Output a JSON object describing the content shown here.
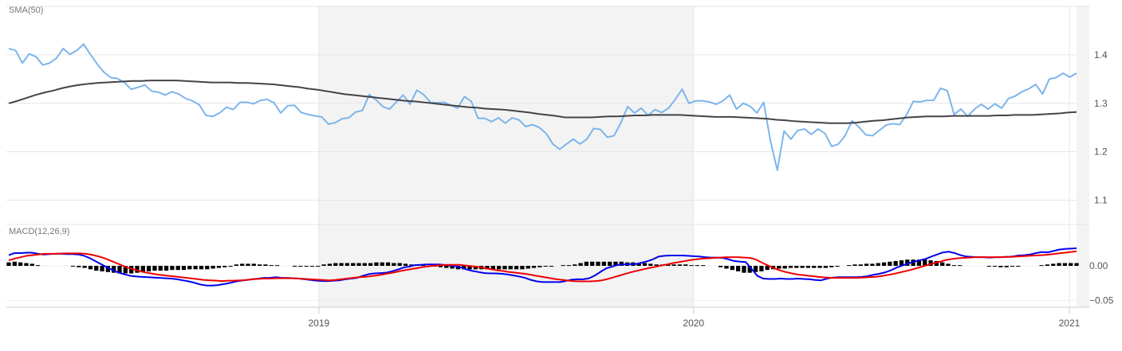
{
  "chart_data": [
    {
      "type": "line",
      "title": "SMA(50)",
      "ylim": [
        1.05,
        1.5
      ],
      "yticks": [
        1.1,
        1.2,
        1.3,
        1.4
      ],
      "ytick_labels": [
        "1.1",
        "1.2",
        "1.3",
        "1.4"
      ],
      "grid": true,
      "series": [
        {
          "color": "#7cb5ec",
          "values": [
            1.413,
            1.409,
            1.383,
            1.402,
            1.396,
            1.379,
            1.383,
            1.393,
            1.413,
            1.401,
            1.409,
            1.422,
            1.401,
            1.381,
            1.364,
            1.353,
            1.351,
            1.343,
            1.329,
            1.333,
            1.338,
            1.325,
            1.323,
            1.317,
            1.324,
            1.319,
            1.31,
            1.305,
            1.297,
            1.275,
            1.273,
            1.28,
            1.292,
            1.287,
            1.302,
            1.302,
            1.299,
            1.306,
            1.308,
            1.301,
            1.28,
            1.295,
            1.296,
            1.281,
            1.277,
            1.274,
            1.272,
            1.257,
            1.26,
            1.268,
            1.27,
            1.282,
            1.285,
            1.318,
            1.307,
            1.293,
            1.288,
            1.303,
            1.317,
            1.298,
            1.327,
            1.318,
            1.302,
            1.301,
            1.302,
            1.296,
            1.29,
            1.314,
            1.304,
            1.269,
            1.269,
            1.262,
            1.27,
            1.259,
            1.27,
            1.266,
            1.252,
            1.256,
            1.25,
            1.238,
            1.216,
            1.205,
            1.216,
            1.226,
            1.216,
            1.226,
            1.248,
            1.246,
            1.23,
            1.233,
            1.26,
            1.293,
            1.28,
            1.29,
            1.275,
            1.287,
            1.281,
            1.29,
            1.308,
            1.329,
            1.3,
            1.305,
            1.305,
            1.303,
            1.298,
            1.305,
            1.317,
            1.288,
            1.3,
            1.294,
            1.28,
            1.302,
            1.222,
            1.162,
            1.243,
            1.226,
            1.244,
            1.247,
            1.236,
            1.247,
            1.238,
            1.211,
            1.216,
            1.234,
            1.264,
            1.251,
            1.235,
            1.233,
            1.244,
            1.255,
            1.258,
            1.256,
            1.276,
            1.304,
            1.303,
            1.306,
            1.306,
            1.331,
            1.326,
            1.277,
            1.288,
            1.273,
            1.288,
            1.298,
            1.288,
            1.299,
            1.29,
            1.31,
            1.315,
            1.324,
            1.33,
            1.339,
            1.319,
            1.35,
            1.353,
            1.362,
            1.354,
            1.362
          ]
        },
        {
          "color": "#434348",
          "values": [
            1.3,
            1.305,
            1.311,
            1.317,
            1.322,
            1.326,
            1.331,
            1.335,
            1.338,
            1.34,
            1.342,
            1.343,
            1.344,
            1.345,
            1.346,
            1.346,
            1.347,
            1.347,
            1.347,
            1.347,
            1.346,
            1.345,
            1.344,
            1.343,
            1.343,
            1.343,
            1.342,
            1.342,
            1.341,
            1.34,
            1.339,
            1.337,
            1.335,
            1.333,
            1.33,
            1.328,
            1.325,
            1.322,
            1.319,
            1.317,
            1.315,
            1.313,
            1.311,
            1.309,
            1.307,
            1.305,
            1.304,
            1.302,
            1.3,
            1.298,
            1.296,
            1.294,
            1.292,
            1.291,
            1.289,
            1.288,
            1.287,
            1.285,
            1.283,
            1.281,
            1.278,
            1.276,
            1.274,
            1.271,
            1.271,
            1.271,
            1.271,
            1.272,
            1.273,
            1.273,
            1.274,
            1.275,
            1.275,
            1.276,
            1.276,
            1.276,
            1.276,
            1.275,
            1.274,
            1.273,
            1.272,
            1.272,
            1.272,
            1.271,
            1.27,
            1.269,
            1.268,
            1.266,
            1.265,
            1.263,
            1.262,
            1.261,
            1.26,
            1.259,
            1.259,
            1.259,
            1.26,
            1.262,
            1.264,
            1.265,
            1.267,
            1.269,
            1.271,
            1.272,
            1.273,
            1.273,
            1.273,
            1.274,
            1.274,
            1.274,
            1.274,
            1.274,
            1.275,
            1.275,
            1.276,
            1.276,
            1.276,
            1.277,
            1.278,
            1.279,
            1.281,
            1.282
          ]
        }
      ]
    },
    {
      "type": "bar",
      "title": "MACD(12,26,9)",
      "ylim": [
        -0.06,
        0.06
      ],
      "yticks": [
        0.0,
        -0.05
      ],
      "ytick_labels": [
        "0.00",
        "−0.05"
      ],
      "grid": true,
      "x_type": "date",
      "x_range": [
        "2018-03-05",
        "2021-01-08"
      ],
      "xticks": [
        "2019-01-01",
        "2020-01-01",
        "2021-01-01"
      ],
      "xtick_labels": [
        "2019",
        "2020",
        "2021"
      ],
      "shaded_band": [
        "2019-01-01",
        "2020-01-01"
      ],
      "series": [
        {
          "type": "line",
          "color": "#0000ee",
          "values": [
            0.0155,
            0.0185,
            0.0185,
            0.019,
            0.019,
            0.0175,
            0.0165,
            0.017,
            0.0175,
            0.0175,
            0.017,
            0.017,
            0.0165,
            0.0145,
            0.011,
            0.0065,
            0.002,
            -0.0025,
            -0.0065,
            -0.01,
            -0.0125,
            -0.0145,
            -0.0155,
            -0.016,
            -0.0165,
            -0.017,
            -0.0175,
            -0.018,
            -0.0185,
            -0.0195,
            -0.021,
            -0.0225,
            -0.0245,
            -0.027,
            -0.0285,
            -0.0285,
            -0.028,
            -0.0265,
            -0.025,
            -0.023,
            -0.0215,
            -0.0205,
            -0.0195,
            -0.0185,
            -0.0175,
            -0.0175,
            -0.0165,
            -0.0175,
            -0.0175,
            -0.018,
            -0.0185,
            -0.0195,
            -0.0205,
            -0.0215,
            -0.022,
            -0.022,
            -0.0215,
            -0.021,
            -0.0195,
            -0.0185,
            -0.0175,
            -0.0145,
            -0.012,
            -0.011,
            -0.0105,
            -0.01,
            -0.008,
            -0.0055,
            -0.0025,
            -0.001,
            0.001,
            0.0015,
            0.002,
            0.002,
            0.002,
            0.0015,
            0.0005,
            -0.0005,
            -0.0025,
            -0.0055,
            -0.0075,
            -0.009,
            -0.0105,
            -0.011,
            -0.011,
            -0.0115,
            -0.0125,
            -0.014,
            -0.0155,
            -0.0175,
            -0.0205,
            -0.0225,
            -0.0235,
            -0.0235,
            -0.0235,
            -0.0235,
            -0.022,
            -0.02,
            -0.0195,
            -0.0195,
            -0.018,
            -0.014,
            -0.0085,
            -0.0035,
            -0.001,
            0.0015,
            0.002,
            0.0025,
            0.0025,
            0.0045,
            0.0065,
            0.0095,
            0.0135,
            0.0145,
            0.015,
            0.015,
            0.015,
            0.0145,
            0.014,
            0.0135,
            0.0125,
            0.012,
            0.012,
            0.0115,
            0.0095,
            0.007,
            0.006,
            0.0055,
            -0.0045,
            -0.0145,
            -0.0185,
            -0.019,
            -0.019,
            -0.0185,
            -0.019,
            -0.019,
            -0.0185,
            -0.019,
            -0.0195,
            -0.0205,
            -0.021,
            -0.0185,
            -0.017,
            -0.0165,
            -0.0165,
            -0.0165,
            -0.0165,
            -0.016,
            -0.015,
            -0.013,
            -0.0115,
            -0.0095,
            -0.0065,
            -0.0025,
            0.0005,
            0.0035,
            0.006,
            0.008,
            0.01,
            0.0135,
            0.0165,
            0.0195,
            0.0205,
            0.0185,
            0.0155,
            0.0135,
            0.013,
            0.0125,
            0.0125,
            0.012,
            0.0125,
            0.0125,
            0.013,
            0.0135,
            0.015,
            0.0155,
            0.0165,
            0.0185,
            0.02,
            0.0195,
            0.0215,
            0.0235,
            0.0245,
            0.025,
            0.0255
          ]
        },
        {
          "type": "line",
          "color": "#ee0000",
          "values": [
            0.008,
            0.0105,
            0.0125,
            0.0145,
            0.0155,
            0.0165,
            0.0175,
            0.0175,
            0.0175,
            0.018,
            0.018,
            0.018,
            0.018,
            0.0175,
            0.016,
            0.014,
            0.0115,
            0.008,
            0.0045,
            0.001,
            -0.0025,
            -0.005,
            -0.0075,
            -0.0095,
            -0.011,
            -0.0125,
            -0.0135,
            -0.0145,
            -0.0155,
            -0.0165,
            -0.0175,
            -0.0185,
            -0.0195,
            -0.0205,
            -0.021,
            -0.0215,
            -0.022,
            -0.0215,
            -0.0215,
            -0.021,
            -0.0205,
            -0.0195,
            -0.019,
            -0.0185,
            -0.0185,
            -0.018,
            -0.018,
            -0.018,
            -0.018,
            -0.0185,
            -0.019,
            -0.0195,
            -0.02,
            -0.0205,
            -0.021,
            -0.0205,
            -0.0195,
            -0.0185,
            -0.0175,
            -0.0165,
            -0.016,
            -0.015,
            -0.014,
            -0.0125,
            -0.011,
            -0.0095,
            -0.0075,
            -0.006,
            -0.0045,
            -0.003,
            -0.0015,
            -0.0005,
            0.0005,
            0.001,
            0.0015,
            0.0015,
            0.0015,
            0.0005,
            -0.0005,
            -0.0015,
            -0.003,
            -0.0045,
            -0.006,
            -0.007,
            -0.0085,
            -0.0095,
            -0.0105,
            -0.0115,
            -0.013,
            -0.0145,
            -0.016,
            -0.0175,
            -0.019,
            -0.02,
            -0.021,
            -0.022,
            -0.0225,
            -0.0225,
            -0.0225,
            -0.022,
            -0.021,
            -0.019,
            -0.0165,
            -0.014,
            -0.0115,
            -0.009,
            -0.007,
            -0.005,
            -0.003,
            -0.0015,
            0.0005,
            0.002,
            0.004,
            0.0055,
            0.007,
            0.0085,
            0.0095,
            0.0105,
            0.011,
            0.0115,
            0.012,
            0.0125,
            0.0125,
            0.0125,
            0.012,
            0.0115,
            0.009,
            0.0045,
            0.0005,
            -0.0035,
            -0.0065,
            -0.009,
            -0.011,
            -0.0125,
            -0.0135,
            -0.0145,
            -0.0155,
            -0.0165,
            -0.017,
            -0.0175,
            -0.0175,
            -0.0175,
            -0.0175,
            -0.0175,
            -0.017,
            -0.0165,
            -0.016,
            -0.015,
            -0.0135,
            -0.012,
            -0.01,
            -0.008,
            -0.006,
            -0.0035,
            -0.001,
            0.0015,
            0.004,
            0.006,
            0.0085,
            0.01,
            0.011,
            0.0115,
            0.012,
            0.0125,
            0.0125,
            0.0125,
            0.0125,
            0.0125,
            0.013,
            0.013,
            0.0135,
            0.014,
            0.0145,
            0.015,
            0.0155,
            0.016,
            0.017,
            0.018,
            0.019,
            0.02,
            0.021
          ]
        },
        {
          "type": "bar",
          "color": "#000000",
          "values": [
            0.005,
            0.006,
            0.005,
            0.004,
            0.003,
            0.001,
            0,
            0,
            0,
            0,
            0,
            -0.001,
            -0.002,
            -0.003,
            -0.005,
            -0.007,
            -0.008,
            -0.009,
            -0.01,
            -0.011,
            -0.011,
            -0.011,
            -0.01,
            -0.009,
            -0.008,
            -0.007,
            -0.007,
            -0.007,
            -0.006,
            -0.006,
            -0.006,
            -0.005,
            -0.005,
            -0.005,
            -0.005,
            -0.004,
            -0.003,
            -0.002,
            -0.001,
            0.002,
            0.003,
            0.003,
            0.003,
            0.002,
            0.002,
            0.001,
            0.001,
            0,
            0,
            -0.001,
            -0.001,
            -0.001,
            -0.001,
            -0.001,
            0.002,
            0.003,
            0.004,
            0.004,
            0.004,
            0.004,
            0.004,
            0.004,
            0.004,
            0.005,
            0.005,
            0.005,
            0.004,
            0.004,
            0.003,
            0.002,
            0.002,
            0.001,
            0,
            -0.001,
            -0.002,
            -0.003,
            -0.004,
            -0.005,
            -0.005,
            -0.005,
            -0.005,
            -0.005,
            -0.005,
            -0.005,
            -0.005,
            -0.005,
            -0.005,
            -0.005,
            -0.005,
            -0.004,
            -0.003,
            -0.002,
            -0.001,
            -0.001,
            0,
            0.001,
            0.001,
            0.002,
            0.004,
            0.006,
            0.006,
            0.006,
            0.006,
            0.006,
            0.006,
            0.006,
            0.005,
            0.005,
            0.004,
            0.004,
            0.003,
            0.002,
            0.002,
            0.002,
            0.002,
            0.002,
            0.002,
            0.001,
            0.001,
            0.001,
            0,
            0,
            -0.002,
            -0.004,
            -0.006,
            -0.008,
            -0.01,
            -0.01,
            -0.009,
            -0.008,
            -0.006,
            -0.005,
            -0.004,
            -0.004,
            -0.003,
            -0.003,
            -0.003,
            -0.003,
            -0.003,
            -0.003,
            -0.003,
            -0.002,
            -0.001,
            0,
            0.001,
            0.002,
            0.002,
            0.003,
            0.003,
            0.004,
            0.005,
            0.006,
            0.007,
            0.008,
            0.009,
            0.009,
            0.009,
            0.009,
            0.008,
            0.007,
            0.005,
            0.003,
            0.001,
            0.001,
            0,
            0,
            0,
            0,
            -0.001,
            -0.001,
            -0.002,
            -0.002,
            -0.001,
            -0.001,
            0,
            0,
            0,
            0.001,
            0.002,
            0.003,
            0.004,
            0.004,
            0.004,
            0.004
          ]
        }
      ]
    }
  ]
}
